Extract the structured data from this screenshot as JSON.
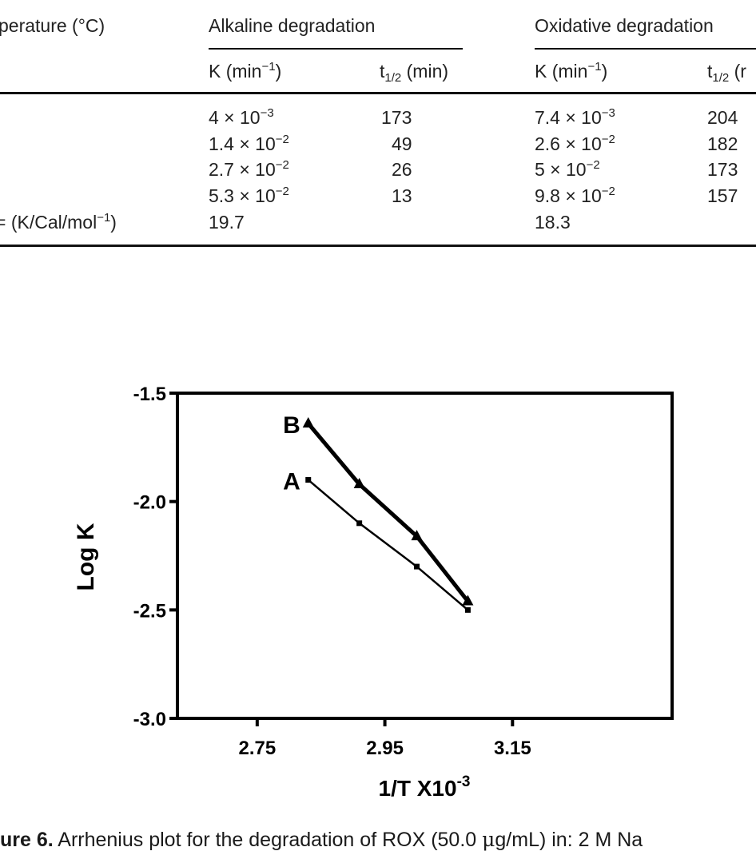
{
  "table": {
    "col_temperature": "perature (°C)",
    "alkaline_header": "Alkaline degradation",
    "oxidative_header": "Oxidative degradation",
    "k_label_main": "K (min",
    "k_label_sup": "−1",
    "k_label_close": ")",
    "t_label_main": "t",
    "t_label_sub": "1/2",
    "t_label_unit": " (min)",
    "t_label_unit_cut": " (r",
    "rows": [
      {
        "alk_k_mant": "4 × 10",
        "alk_k_exp": "−3",
        "alk_t": "173",
        "oxi_k_mant": "7.4 × 10",
        "oxi_k_exp": "−3",
        "oxi_t": "204"
      },
      {
        "alk_k_mant": "1.4 × 10",
        "alk_k_exp": "−2",
        "alk_t": "49",
        "oxi_k_mant": "2.6 × 10",
        "oxi_k_exp": "−2",
        "oxi_t": "182"
      },
      {
        "alk_k_mant": "2.7 × 10",
        "alk_k_exp": "−2",
        "alk_t": "26",
        "oxi_k_mant": "5 × 10",
        "oxi_k_exp": "−2",
        "oxi_t": "173"
      },
      {
        "alk_k_mant": "5.3 × 10",
        "alk_k_exp": "−2",
        "alk_t": "13",
        "oxi_k_mant": "9.8 × 10",
        "oxi_k_exp": "−2",
        "oxi_t": "157"
      }
    ],
    "ea_label_main": "= (K/Cal/mol",
    "ea_label_sup": "−1",
    "ea_label_close": ")",
    "ea_alk": "19.7",
    "ea_oxi": "18.3"
  },
  "chart_data": {
    "type": "line",
    "xlabel_main": "1/T X10",
    "xlabel_sup": "-3",
    "ylabel": "Log K",
    "xlim": [
      2.625,
      3.4
    ],
    "ylim": [
      -3.0,
      -1.5
    ],
    "xticks": [
      "2.75",
      "2.95",
      "3.15"
    ],
    "yticks": [
      "-1.5",
      "-2.0",
      "-2.5",
      "-3.0"
    ],
    "series": [
      {
        "name": "A",
        "x": [
          2.83,
          2.91,
          3.0,
          3.08
        ],
        "y": [
          -1.9,
          -2.1,
          -2.3,
          -2.5
        ]
      },
      {
        "name": "B",
        "x": [
          2.83,
          2.91,
          3.0,
          3.08
        ],
        "y": [
          -1.64,
          -1.92,
          -2.16,
          -2.46
        ]
      }
    ]
  },
  "caption": {
    "figure_label": "ure 6.",
    "text_part1": " Arrhenius plot for the degradation of ROX (50.0 ",
    "mu": "μ",
    "text_part2": "g/mL) in: 2 M Na"
  }
}
